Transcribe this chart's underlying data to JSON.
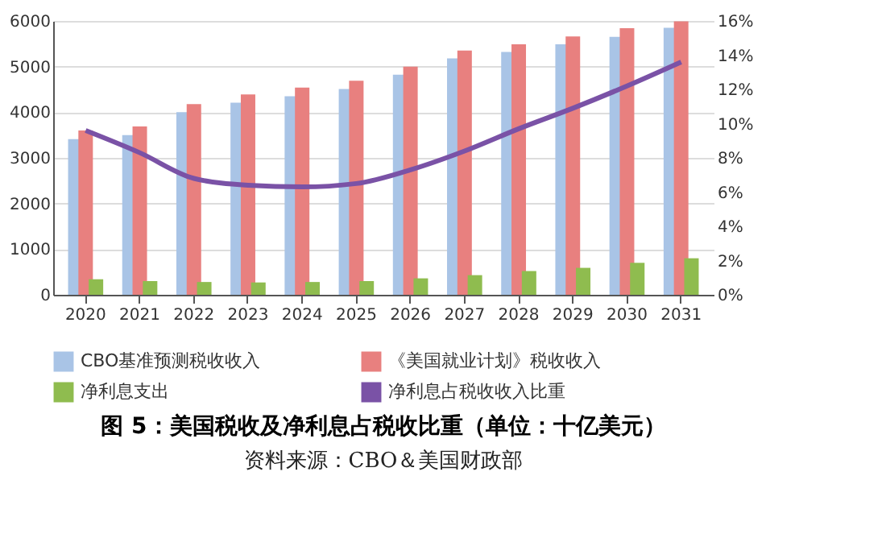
{
  "chart_data": {
    "type": "bar",
    "title": "图 5：美国税收及净利息占税收比重（单位：十亿美元）",
    "categories": [
      "2020",
      "2021",
      "2022",
      "2023",
      "2024",
      "2025",
      "2026",
      "2027",
      "2028",
      "2029",
      "2030",
      "2031"
    ],
    "series": [
      {
        "name": "CBO基准预测税收收入",
        "color": "#a9c4e6",
        "values": [
          3410,
          3500,
          4000,
          4210,
          4350,
          4510,
          4820,
          5180,
          5320,
          5490,
          5650,
          5850
        ]
      },
      {
        "name": "《美国就业计划》税收收入",
        "color": "#e8807f",
        "values": [
          3600,
          3690,
          4180,
          4390,
          4540,
          4690,
          5000,
          5350,
          5490,
          5660,
          5840,
          5990
        ]
      },
      {
        "name": "净利息支出",
        "color": "#8fbc4f",
        "values": [
          340,
          300,
          280,
          270,
          280,
          300,
          360,
          430,
          520,
          590,
          700,
          800
        ]
      },
      {
        "name": "净利息占税收收入比重",
        "type": "line",
        "axis": "y2",
        "color": "#7a52a6",
        "values": [
          9.6,
          8.3,
          6.8,
          6.4,
          6.3,
          6.5,
          7.3,
          8.4,
          9.7,
          10.9,
          12.2,
          13.6
        ]
      }
    ],
    "ylim": [
      0,
      6000
    ],
    "yticks": [
      0,
      1000,
      2000,
      3000,
      4000,
      5000,
      6000
    ],
    "y2lim": [
      0,
      16
    ],
    "y2ticks": [
      {
        "value": 0,
        "label": "0%"
      },
      {
        "value": 2,
        "label": "2%"
      },
      {
        "value": 4,
        "label": "4%"
      },
      {
        "value": 6,
        "label": "6%"
      },
      {
        "value": 8,
        "label": "8%"
      },
      {
        "value": 10,
        "label": "10%"
      },
      {
        "value": 12,
        "label": "12%"
      },
      {
        "value": 14,
        "label": "14%"
      },
      {
        "value": 16,
        "label": "16%"
      }
    ],
    "grid": "y",
    "legend": "bottom",
    "annotations": [
      "资料来源：CBO＆美国财政部"
    ]
  }
}
